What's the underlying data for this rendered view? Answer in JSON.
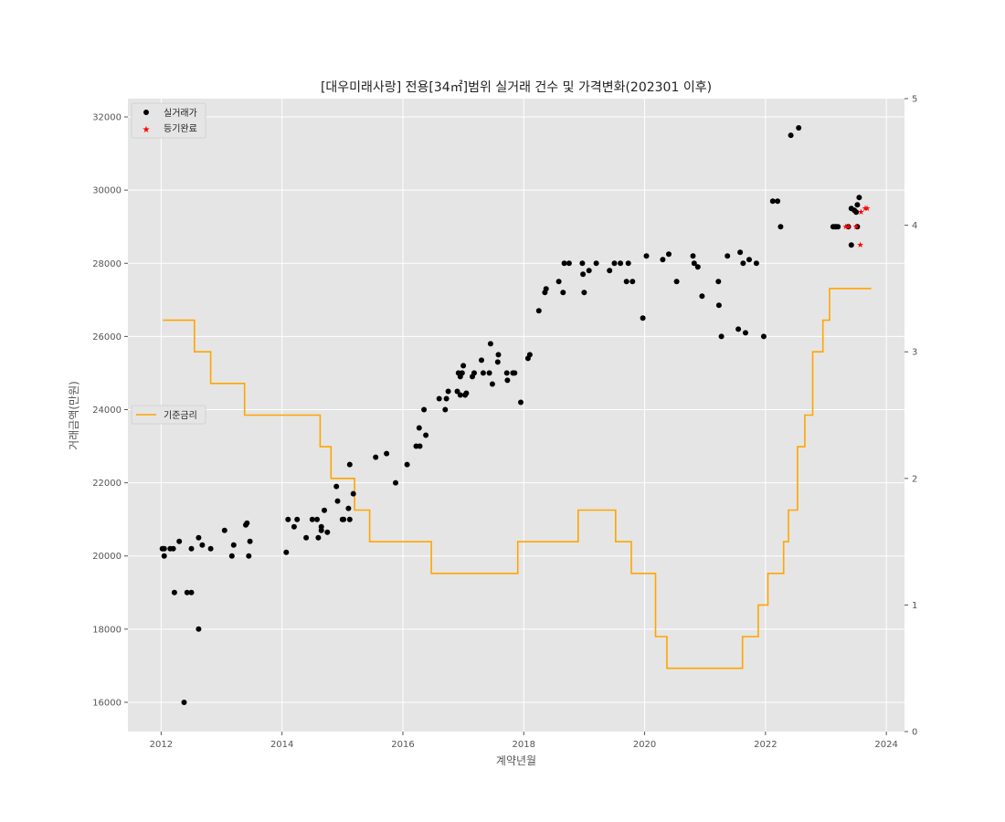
{
  "chart_data": {
    "type": "scatter",
    "title": "[대우미래사랑] 전용[34㎡]범위 실거래 건수 및 가격변화(202301 이후)",
    "xlabel": "계약년월",
    "ylabel": "거래금액(만원)",
    "xlim": [
      2011.45,
      2024.3
    ],
    "ylim": [
      15200,
      32500
    ],
    "y2lim": [
      0,
      5
    ],
    "x_ticks": [
      "2012",
      "2014",
      "2016",
      "2018",
      "2020",
      "2022",
      "2024"
    ],
    "y_ticks": [
      "16000",
      "18000",
      "20000",
      "22000",
      "24000",
      "26000",
      "28000",
      "30000",
      "32000"
    ],
    "y2_ticks": [
      "0",
      "1",
      "2",
      "3",
      "4",
      "5"
    ],
    "grid": true,
    "legend_main": {
      "placement": "upper-left",
      "entries": [
        {
          "label": "실거래가",
          "marker": "dot",
          "color": "#000000"
        },
        {
          "label": "등기완료",
          "marker": "star",
          "color": "#ff0000"
        }
      ]
    },
    "legend_secondary": {
      "placement": "center-left",
      "entries": [
        {
          "label": "기준금리",
          "marker": "line",
          "color": "#ffa500"
        }
      ]
    },
    "series": [
      {
        "name": "실거래가",
        "color": "#000000",
        "points": [
          [
            2012.02,
            20200
          ],
          [
            2012.05,
            20000
          ],
          [
            2012.05,
            20200
          ],
          [
            2012.15,
            20200
          ],
          [
            2012.2,
            20200
          ],
          [
            2012.22,
            19000
          ],
          [
            2012.3,
            20400
          ],
          [
            2012.38,
            16000
          ],
          [
            2012.43,
            19000
          ],
          [
            2012.5,
            19000
          ],
          [
            2012.5,
            20200
          ],
          [
            2012.62,
            18000
          ],
          [
            2012.62,
            20500
          ],
          [
            2012.68,
            20300
          ],
          [
            2012.82,
            20200
          ],
          [
            2013.05,
            20700
          ],
          [
            2013.17,
            20000
          ],
          [
            2013.2,
            20300
          ],
          [
            2013.4,
            20850
          ],
          [
            2013.42,
            20900
          ],
          [
            2013.45,
            20000
          ],
          [
            2013.47,
            20400
          ],
          [
            2014.07,
            20100
          ],
          [
            2014.1,
            21000
          ],
          [
            2014.2,
            20800
          ],
          [
            2014.25,
            21000
          ],
          [
            2014.4,
            20500
          ],
          [
            2014.5,
            21000
          ],
          [
            2014.58,
            21000
          ],
          [
            2014.6,
            20500
          ],
          [
            2014.65,
            20700
          ],
          [
            2014.65,
            20800
          ],
          [
            2014.7,
            21250
          ],
          [
            2014.75,
            20650
          ],
          [
            2014.9,
            21900
          ],
          [
            2014.92,
            21500
          ],
          [
            2015.0,
            21000
          ],
          [
            2015.02,
            21000
          ],
          [
            2015.1,
            21300
          ],
          [
            2015.12,
            21000
          ],
          [
            2015.12,
            22500
          ],
          [
            2015.18,
            21700
          ],
          [
            2015.55,
            22700
          ],
          [
            2015.73,
            22800
          ],
          [
            2015.88,
            22000
          ],
          [
            2016.07,
            22500
          ],
          [
            2016.22,
            23000
          ],
          [
            2016.27,
            23500
          ],
          [
            2016.28,
            23000
          ],
          [
            2016.35,
            24000
          ],
          [
            2016.38,
            23300
          ],
          [
            2016.6,
            24300
          ],
          [
            2016.7,
            24000
          ],
          [
            2016.72,
            24300
          ],
          [
            2016.75,
            24500
          ],
          [
            2016.9,
            24500
          ],
          [
            2016.92,
            25000
          ],
          [
            2016.95,
            24400
          ],
          [
            2016.95,
            24900
          ],
          [
            2016.98,
            25000
          ],
          [
            2017.0,
            25200
          ],
          [
            2017.03,
            24400
          ],
          [
            2017.05,
            24450
          ],
          [
            2017.15,
            24900
          ],
          [
            2017.18,
            25000
          ],
          [
            2017.3,
            25350
          ],
          [
            2017.33,
            25000
          ],
          [
            2017.43,
            25000
          ],
          [
            2017.45,
            25800
          ],
          [
            2017.48,
            24700
          ],
          [
            2017.57,
            25300
          ],
          [
            2017.58,
            25500
          ],
          [
            2017.72,
            25000
          ],
          [
            2017.73,
            24800
          ],
          [
            2017.82,
            25000
          ],
          [
            2017.85,
            25000
          ],
          [
            2017.95,
            24200
          ],
          [
            2018.07,
            25400
          ],
          [
            2018.1,
            25500
          ],
          [
            2018.25,
            26700
          ],
          [
            2018.35,
            27200
          ],
          [
            2018.37,
            27300
          ],
          [
            2018.58,
            27500
          ],
          [
            2018.65,
            27200
          ],
          [
            2018.67,
            28000
          ],
          [
            2018.75,
            28000
          ],
          [
            2018.97,
            28000
          ],
          [
            2018.98,
            27700
          ],
          [
            2019.0,
            27200
          ],
          [
            2019.08,
            27800
          ],
          [
            2019.2,
            28000
          ],
          [
            2019.42,
            27800
          ],
          [
            2019.5,
            28000
          ],
          [
            2019.6,
            28000
          ],
          [
            2019.7,
            27500
          ],
          [
            2019.73,
            28000
          ],
          [
            2019.8,
            27500
          ],
          [
            2019.97,
            26500
          ],
          [
            2020.03,
            28200
          ],
          [
            2020.3,
            28100
          ],
          [
            2020.4,
            28250
          ],
          [
            2020.53,
            27500
          ],
          [
            2020.8,
            28200
          ],
          [
            2020.82,
            28000
          ],
          [
            2020.88,
            27900
          ],
          [
            2020.95,
            27100
          ],
          [
            2021.22,
            27500
          ],
          [
            2021.23,
            26850
          ],
          [
            2021.27,
            26000
          ],
          [
            2021.37,
            28200
          ],
          [
            2021.55,
            26200
          ],
          [
            2021.58,
            28300
          ],
          [
            2021.63,
            28000
          ],
          [
            2021.67,
            26100
          ],
          [
            2021.73,
            28100
          ],
          [
            2021.85,
            28000
          ],
          [
            2021.97,
            26000
          ],
          [
            2022.12,
            29700
          ],
          [
            2022.2,
            29700
          ],
          [
            2022.25,
            29000
          ],
          [
            2022.42,
            31500
          ],
          [
            2022.55,
            31700
          ],
          [
            2023.12,
            29000
          ],
          [
            2023.15,
            29000
          ],
          [
            2023.17,
            29000
          ],
          [
            2023.2,
            29000
          ],
          [
            2023.37,
            29000
          ],
          [
            2023.42,
            29500
          ],
          [
            2023.42,
            28500
          ],
          [
            2023.47,
            29450
          ],
          [
            2023.5,
            29400
          ],
          [
            2023.52,
            29000
          ],
          [
            2023.52,
            29600
          ],
          [
            2023.55,
            29800
          ]
        ]
      },
      {
        "name": "등기완료",
        "color": "#ff0000",
        "points": [
          [
            2023.33,
            29000
          ],
          [
            2023.37,
            29000
          ],
          [
            2023.5,
            29000
          ],
          [
            2023.57,
            28500
          ],
          [
            2023.58,
            29400
          ],
          [
            2023.65,
            29500
          ],
          [
            2023.68,
            29500
          ]
        ]
      },
      {
        "name": "기준금리",
        "color": "#ffa500",
        "axis": "right",
        "step": [
          [
            2012.03,
            3.25
          ],
          [
            2012.55,
            3.0
          ],
          [
            2012.82,
            2.75
          ],
          [
            2013.38,
            2.5
          ],
          [
            2014.63,
            2.25
          ],
          [
            2014.81,
            2.0
          ],
          [
            2015.2,
            1.75
          ],
          [
            2015.45,
            1.5
          ],
          [
            2016.47,
            1.25
          ],
          [
            2017.9,
            1.5
          ],
          [
            2018.9,
            1.75
          ],
          [
            2019.52,
            1.5
          ],
          [
            2019.78,
            1.25
          ],
          [
            2020.18,
            0.75
          ],
          [
            2020.37,
            0.5
          ],
          [
            2021.62,
            0.75
          ],
          [
            2021.88,
            1.0
          ],
          [
            2022.04,
            1.25
          ],
          [
            2022.3,
            1.5
          ],
          [
            2022.38,
            1.75
          ],
          [
            2022.53,
            2.25
          ],
          [
            2022.65,
            2.5
          ],
          [
            2022.78,
            3.0
          ],
          [
            2022.95,
            3.25
          ],
          [
            2023.06,
            3.5
          ],
          [
            2023.75,
            3.5
          ]
        ]
      }
    ]
  }
}
